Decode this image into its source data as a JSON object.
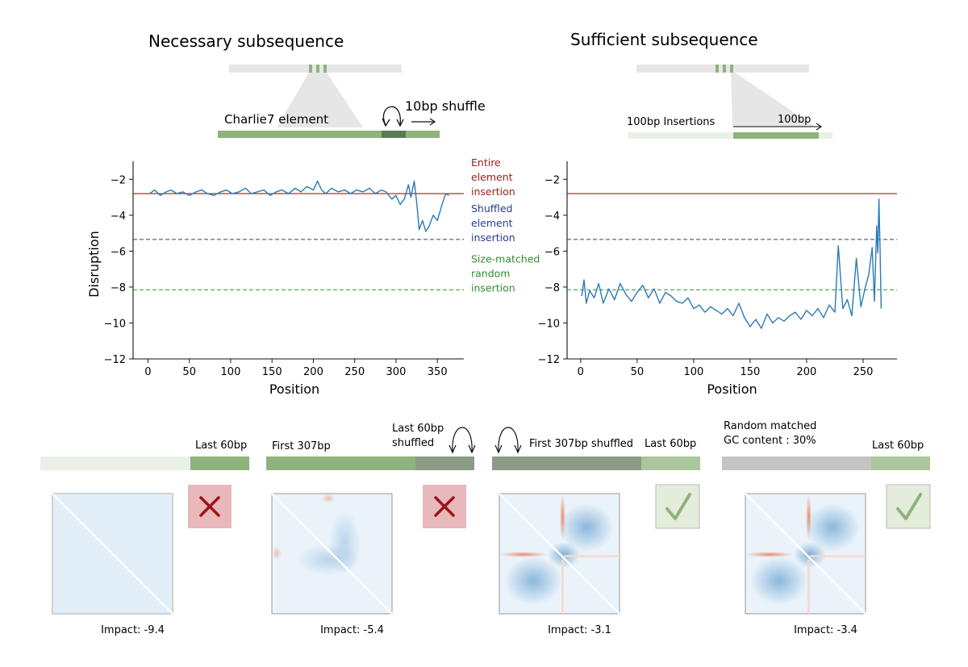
{
  "panels": {
    "necessary": {
      "title": "Necessary subsequence",
      "element_label": "Charlie7 element",
      "shuffle_label": "10bp shuffle"
    },
    "sufficient": {
      "title": "Sufficient subsequence",
      "insertions_label": "100bp Insertions",
      "window_label": "100bp"
    }
  },
  "reference_lines": [
    {
      "label_lines": [
        "Entire",
        "element",
        "insertion"
      ],
      "value": -2.8,
      "color": "#9e1c1c",
      "style": "solid"
    },
    {
      "label_lines": [
        "Shuffled",
        "element",
        "insertion"
      ],
      "value": -5.35,
      "color": "#2b3a8f",
      "style": "dashed"
    },
    {
      "label_lines": [
        "Size-matched",
        "random",
        "insertion"
      ],
      "value": -8.15,
      "color": "#2f8f2f",
      "style": "dashed"
    }
  ],
  "chart_data": [
    {
      "type": "line",
      "xlabel": "Position",
      "ylabel": "Disruption",
      "xticks": [
        0,
        50,
        100,
        150,
        200,
        250,
        300,
        350
      ],
      "yticks": [
        -2,
        -4,
        -6,
        -8,
        -10,
        -12
      ],
      "xlim": [
        -18,
        382
      ],
      "ylim": [
        -12,
        -1
      ],
      "line_color": "#2a7ab8",
      "x": [
        2,
        8,
        15,
        22,
        28,
        35,
        42,
        50,
        58,
        65,
        72,
        80,
        88,
        95,
        102,
        110,
        118,
        125,
        132,
        140,
        148,
        155,
        162,
        170,
        178,
        185,
        192,
        200,
        205,
        210,
        215,
        222,
        230,
        238,
        245,
        252,
        260,
        268,
        275,
        282,
        288,
        295,
        300,
        305,
        310,
        315,
        318,
        322,
        325,
        328,
        332,
        336,
        340,
        345,
        350,
        355,
        360,
        364
      ],
      "y": [
        -2.8,
        -2.6,
        -2.9,
        -2.7,
        -2.6,
        -2.8,
        -2.7,
        -2.9,
        -2.7,
        -2.6,
        -2.8,
        -2.9,
        -2.7,
        -2.6,
        -2.8,
        -2.7,
        -2.5,
        -2.8,
        -2.7,
        -2.6,
        -2.9,
        -2.7,
        -2.6,
        -2.8,
        -2.5,
        -2.7,
        -2.4,
        -2.6,
        -2.1,
        -2.6,
        -2.8,
        -2.5,
        -2.7,
        -2.6,
        -2.8,
        -2.6,
        -2.7,
        -2.5,
        -2.8,
        -2.6,
        -2.7,
        -3.1,
        -2.9,
        -3.4,
        -3.1,
        -2.3,
        -3.0,
        -2.1,
        -3.3,
        -4.8,
        -4.3,
        -4.9,
        -4.6,
        -4.0,
        -4.3,
        -3.5,
        -2.8,
        -2.9
      ]
    },
    {
      "type": "line",
      "xlabel": "Position",
      "ylabel": "",
      "xticks": [
        0,
        50,
        100,
        150,
        200,
        250
      ],
      "yticks": [
        -2,
        -4,
        -6,
        -8,
        -10,
        -12
      ],
      "xlim": [
        -12,
        280
      ],
      "ylim": [
        -12,
        -1
      ],
      "line_color": "#2a7ab8",
      "x": [
        1,
        3,
        5,
        8,
        12,
        16,
        20,
        25,
        30,
        35,
        40,
        45,
        50,
        55,
        60,
        65,
        70,
        75,
        80,
        85,
        90,
        95,
        100,
        105,
        110,
        115,
        120,
        125,
        130,
        135,
        140,
        145,
        150,
        155,
        160,
        165,
        170,
        175,
        180,
        185,
        190,
        195,
        200,
        205,
        210,
        215,
        220,
        225,
        228,
        232,
        236,
        240,
        244,
        248,
        252,
        255,
        258,
        260,
        262,
        263,
        264,
        265,
        266
      ],
      "y": [
        -8.5,
        -7.6,
        -8.9,
        -8.2,
        -8.6,
        -7.8,
        -8.9,
        -8.1,
        -8.7,
        -7.8,
        -8.4,
        -8.8,
        -8.3,
        -7.9,
        -8.6,
        -8.1,
        -8.9,
        -8.3,
        -8.5,
        -8.8,
        -8.9,
        -8.6,
        -9.2,
        -9.0,
        -9.4,
        -9.1,
        -9.3,
        -9.5,
        -9.2,
        -9.6,
        -8.9,
        -9.7,
        -10.2,
        -9.8,
        -10.3,
        -9.5,
        -10.0,
        -9.7,
        -9.9,
        -9.6,
        -9.4,
        -9.8,
        -9.3,
        -9.6,
        -9.2,
        -9.7,
        -9.0,
        -9.4,
        -5.7,
        -9.2,
        -8.7,
        -9.6,
        -6.4,
        -9.1,
        -8.0,
        -7.3,
        -5.8,
        -8.8,
        -4.6,
        -6.1,
        -3.1,
        -5.9,
        -9.2
      ]
    }
  ],
  "bottom_panels": [
    {
      "labels": [
        "",
        "Last 60bp"
      ],
      "caption": "Impact: -9.4",
      "verdict": "cross",
      "map": "faint"
    },
    {
      "labels": [
        "First 307bp",
        "Last 60bp shuffled"
      ],
      "caption": "Impact: -5.4",
      "verdict": "cross",
      "map": "weak"
    },
    {
      "labels": [
        "First 307bp shuffled",
        "Last 60bp"
      ],
      "caption": "Impact: -3.1",
      "verdict": "check",
      "map": "strong"
    },
    {
      "labels": [
        "Random matched GC content : 30%",
        "Last 60bp"
      ],
      "caption": "Impact: -3.4",
      "verdict": "check",
      "map": "strong"
    }
  ],
  "colors": {
    "green": "#8fb37c",
    "dark_green": "#5d7a55",
    "gray_green": "#8c9b86",
    "light_green": "#eaf0e7",
    "gray": "#c4c4c4",
    "light_gray": "#e6e6e6",
    "cross_box": "#e8b8bc",
    "cross": "#9a1414",
    "check_box": "#e4ecdc",
    "check": "#8fb37c"
  }
}
